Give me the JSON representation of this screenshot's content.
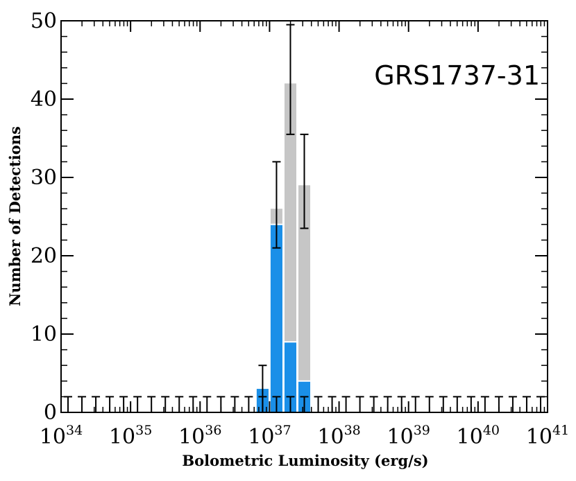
{
  "chart_data": {
    "type": "bar",
    "source_label": "GRS1737-31",
    "xlabel": "Bolometric Luminosity (erg/s)",
    "ylabel": "Number of Detections",
    "x_scale": "log",
    "xlim": [
      1e+34,
      1e+41
    ],
    "ylim": [
      0,
      50
    ],
    "x_ticks": [
      {
        "base": "10",
        "exp": "34"
      },
      {
        "base": "10",
        "exp": "35"
      },
      {
        "base": "10",
        "exp": "36"
      },
      {
        "base": "10",
        "exp": "37"
      },
      {
        "base": "10",
        "exp": "38"
      },
      {
        "base": "10",
        "exp": "39"
      },
      {
        "base": "10",
        "exp": "40"
      },
      {
        "base": "10",
        "exp": "41"
      }
    ],
    "y_ticks": [
      "0",
      "10",
      "20",
      "30",
      "40",
      "50"
    ],
    "bin_edges_dex_step": 0.2,
    "bins": [
      {
        "log_lo": 36.8,
        "log_hi": 37.0,
        "total": 3,
        "err_lo": 0,
        "err_hi": 6
      },
      {
        "log_lo": 37.0,
        "log_hi": 37.2,
        "total": 26,
        "err_lo": 21,
        "err_hi": 32
      },
      {
        "log_lo": 37.2,
        "log_hi": 37.4,
        "total": 42,
        "err_lo": 35.5,
        "err_hi": 49.5
      },
      {
        "log_lo": 37.4,
        "log_hi": 37.6,
        "total": 29,
        "err_lo": 23.5,
        "err_hi": 35.5
      }
    ],
    "series": [
      {
        "values": [
          3,
          24,
          9,
          4
        ],
        "color": "#1a8fe8"
      },
      {
        "values": [
          3,
          26,
          42,
          29
        ],
        "color": "#c6c6c6"
      }
    ],
    "upper_limit_level": 2,
    "upper_limit_bins_log": [
      34.1,
      34.3,
      34.5,
      34.7,
      34.9,
      35.1,
      35.3,
      35.5,
      35.7,
      35.9,
      36.1,
      36.3,
      36.5,
      36.7,
      36.9,
      37.1,
      37.3,
      37.5,
      37.7,
      37.9,
      38.1,
      38.3,
      38.5,
      38.7,
      38.9,
      39.1,
      39.3,
      39.5,
      39.7,
      39.9,
      40.1,
      40.3,
      40.5,
      40.7,
      40.9
    ],
    "grid": false,
    "legend": "none"
  }
}
